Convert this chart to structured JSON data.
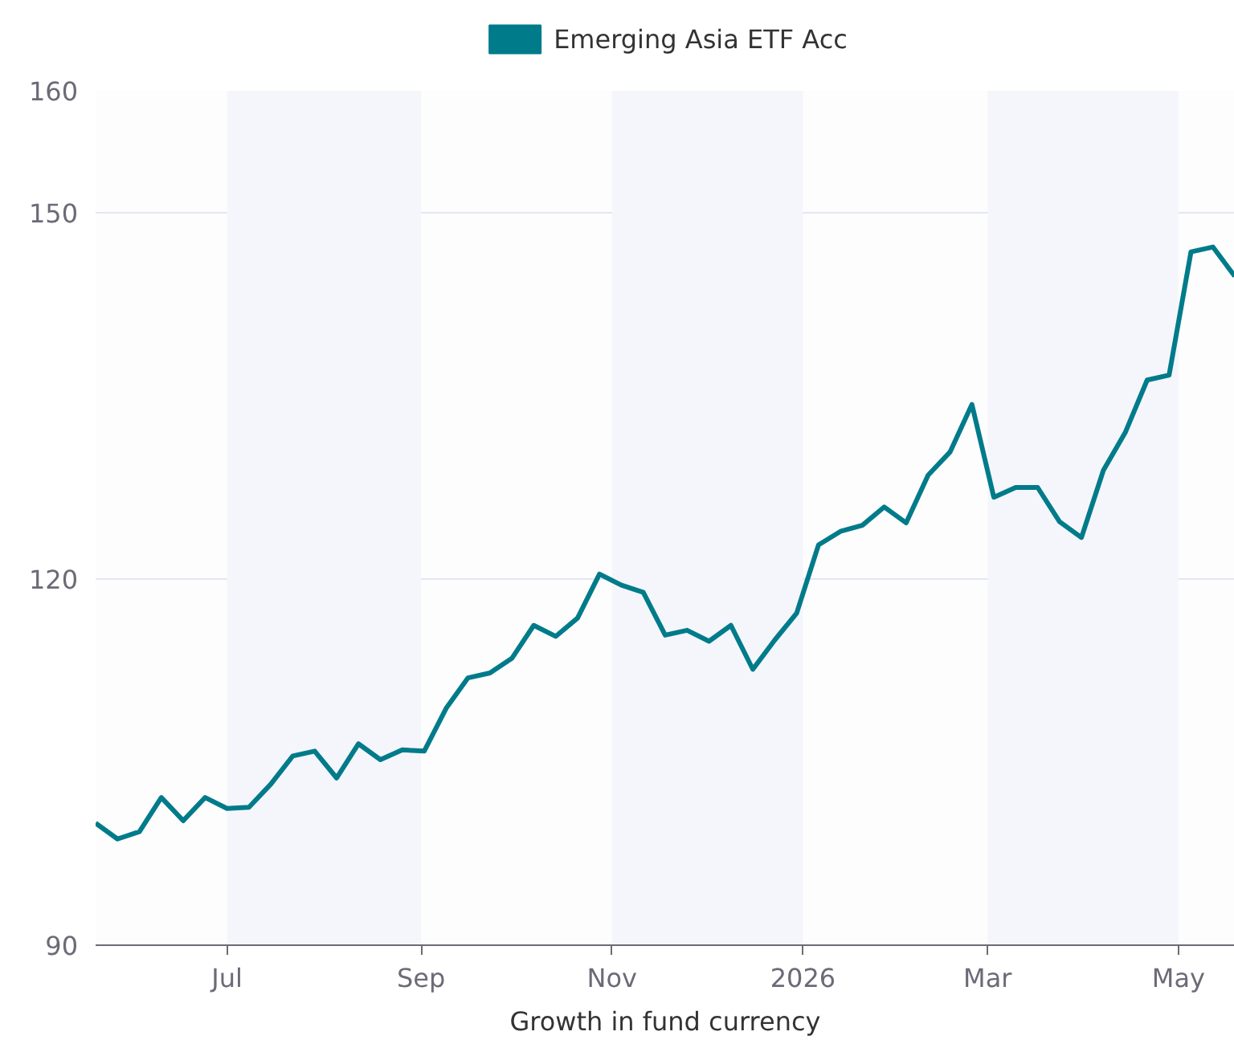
{
  "chart_data": {
    "type": "line",
    "xlabel": "Growth in fund currency",
    "x": [
      "2025-05-20",
      "2025-05-27",
      "2025-06-03",
      "2025-06-10",
      "2025-06-17",
      "2025-06-24",
      "2025-07-01",
      "2025-07-08",
      "2025-07-15",
      "2025-07-22",
      "2025-07-29",
      "2025-08-05",
      "2025-08-12",
      "2025-08-19",
      "2025-08-26",
      "2025-09-02",
      "2025-09-09",
      "2025-09-16",
      "2025-09-23",
      "2025-09-30",
      "2025-10-07",
      "2025-10-14",
      "2025-10-21",
      "2025-10-28",
      "2025-11-04",
      "2025-11-11",
      "2025-11-18",
      "2025-11-25",
      "2025-12-02",
      "2025-12-09",
      "2025-12-16",
      "2025-12-23",
      "2025-12-30",
      "2026-01-06",
      "2026-01-13",
      "2026-01-20",
      "2026-01-27",
      "2026-02-03",
      "2026-02-10",
      "2026-02-17",
      "2026-02-24",
      "2026-03-03",
      "2026-03-10",
      "2026-03-17",
      "2026-03-24",
      "2026-03-31",
      "2026-04-07",
      "2026-04-14",
      "2026-04-21",
      "2026-04-28",
      "2026-05-05",
      "2026-05-12",
      "2026-05-19"
    ],
    "series": [
      {
        "name": "Emerging Asia ETF Acc",
        "color": "#007b8a",
        "values": [
          100.0,
          98.7,
          99.3,
          102.1,
          100.2,
          102.1,
          101.2,
          101.3,
          103.2,
          105.5,
          105.9,
          103.7,
          106.5,
          105.2,
          106.0,
          105.9,
          109.4,
          111.9,
          112.3,
          113.5,
          116.2,
          115.3,
          116.8,
          120.4,
          119.5,
          118.9,
          115.4,
          115.8,
          114.9,
          116.2,
          112.6,
          115.0,
          117.2,
          122.8,
          123.9,
          124.4,
          125.9,
          124.6,
          128.5,
          130.4,
          134.3,
          126.7,
          127.5,
          127.5,
          124.7,
          123.4,
          128.9,
          132.0,
          136.3,
          136.7,
          146.8,
          147.2,
          144.8
        ]
      }
    ],
    "xlim": [
      "2025-05-20",
      "2026-05-19"
    ],
    "xticks": [
      {
        "value": "2025-07-01",
        "label": "Jul"
      },
      {
        "value": "2025-09-01",
        "label": "Sep"
      },
      {
        "value": "2025-11-01",
        "label": "Nov"
      },
      {
        "value": "2026-01-01",
        "label": "2026"
      },
      {
        "value": "2026-03-01",
        "label": "Mar"
      },
      {
        "value": "2026-05-01",
        "label": "May"
      }
    ],
    "ylim": [
      90,
      160
    ],
    "yticks": [
      90,
      120,
      150,
      160
    ],
    "bands": [
      {
        "axis": "x",
        "from": "2025-07-01",
        "to": "2025-09-01",
        "color": "#f4f6fb"
      },
      {
        "axis": "x",
        "from": "2025-11-01",
        "to": "2026-01-01",
        "color": "#f4f6fb"
      },
      {
        "axis": "x",
        "from": "2026-03-01",
        "to": "2026-05-01",
        "color": "#f4f6fb"
      }
    ],
    "grid": "y",
    "legend": "top",
    "line_style": "solid",
    "marker": "none"
  }
}
